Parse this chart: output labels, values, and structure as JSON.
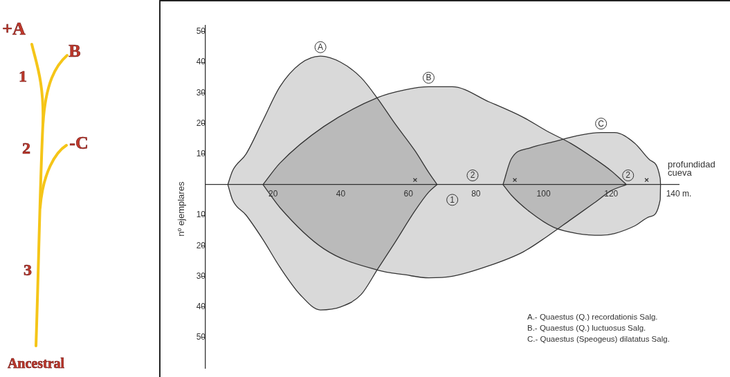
{
  "chart_data": {
    "type": "area",
    "xlabel": "profundidad cueva",
    "ylabel": "nº ejemplares",
    "xlim": [
      0,
      140
    ],
    "ylim": [
      -60,
      52
    ],
    "xticks": [
      20,
      40,
      60,
      80,
      100,
      120,
      {
        "value": 140,
        "label": "140 m."
      }
    ],
    "yticks": [
      50,
      40,
      30,
      20,
      10,
      {
        "value": -10,
        "label": "10"
      },
      {
        "value": -20,
        "label": "20"
      },
      {
        "value": -30,
        "label": "30"
      },
      {
        "value": -40,
        "label": "40"
      },
      {
        "value": -50,
        "label": "50"
      }
    ],
    "series": [
      {
        "name": "A",
        "color": "#333333",
        "x": [
          6.6,
          8,
          12,
          17,
          22,
          28,
          34,
          40,
          46,
          51,
          56,
          62,
          66,
          68.5
        ],
        "values": [
          0,
          4.5,
          10,
          21,
          32,
          39.5,
          42,
          40,
          35,
          28,
          20,
          11,
          4,
          0
        ]
      },
      {
        "color": "#333333",
        "x": [
          6.6,
          8,
          12,
          17,
          22,
          28,
          34,
          40,
          46,
          51,
          56,
          62,
          66,
          68.5
        ],
        "values": [
          0,
          -5,
          -10,
          -18,
          -27,
          -36,
          -41,
          -40,
          -36,
          -27.5,
          -19,
          -8.5,
          -2.5,
          0
        ]
      },
      {
        "name": "B",
        "color": "#333333",
        "x": [
          17,
          22,
          35,
          51,
          59,
          66,
          73,
          84,
          94,
          101,
          108,
          115,
          120,
          124.5
        ],
        "values": [
          0,
          7,
          19,
          28.5,
          31,
          32,
          32,
          27,
          22,
          17.5,
          13.5,
          8.5,
          4.5,
          0
        ]
      },
      {
        "color": "#333333",
        "x": [
          17,
          22,
          35,
          51,
          59,
          66,
          73,
          84,
          94,
          101,
          108,
          115,
          120,
          124.5
        ],
        "values": [
          0,
          -7.5,
          -21,
          -28,
          -29.5,
          -30.5,
          -30,
          -26.5,
          -22,
          -17,
          -11.5,
          -6,
          -2,
          0
        ]
      },
      {
        "name": "C",
        "color": "#333333",
        "x": [
          88,
          90.5,
          96,
          103,
          110,
          117,
          121,
          127,
          131.5,
          134.5,
          134.6
        ],
        "values": [
          0,
          8.5,
          12,
          14,
          16,
          17,
          17,
          13.5,
          8,
          2,
          0
        ]
      },
      {
        "color": "#333333",
        "x": [
          88,
          90.5,
          96,
          103,
          110,
          117,
          121,
          127,
          131.5,
          134.5,
          134.6
        ],
        "values": [
          0,
          -3.5,
          -9,
          -14,
          -16,
          -16.6,
          -16,
          -13.5,
          -10.5,
          -5,
          0
        ]
      },
      {
        "type": "scatter",
        "marker": "cross",
        "color": "#333333",
        "x": [
          62,
          91.5,
          130.5
        ],
        "values": [
          1.5,
          1.5,
          1.5
        ]
      }
    ],
    "annotations": [
      "+A",
      "B",
      "1",
      "2",
      "-C",
      "3",
      "Ancestral",
      {
        "text": "2",
        "x": 79,
        "y": 3
      },
      {
        "text": "1",
        "x": 73,
        "y": -5
      },
      {
        "text": "2",
        "x": 125,
        "y": 3
      },
      "A.- Quaestus (Q.) recordationis Salg.",
      "B.- Quaestus (Q.) luctuosus Salg.",
      "C.- Quaestus (Speogeus) dilatatus Salg."
    ]
  }
}
